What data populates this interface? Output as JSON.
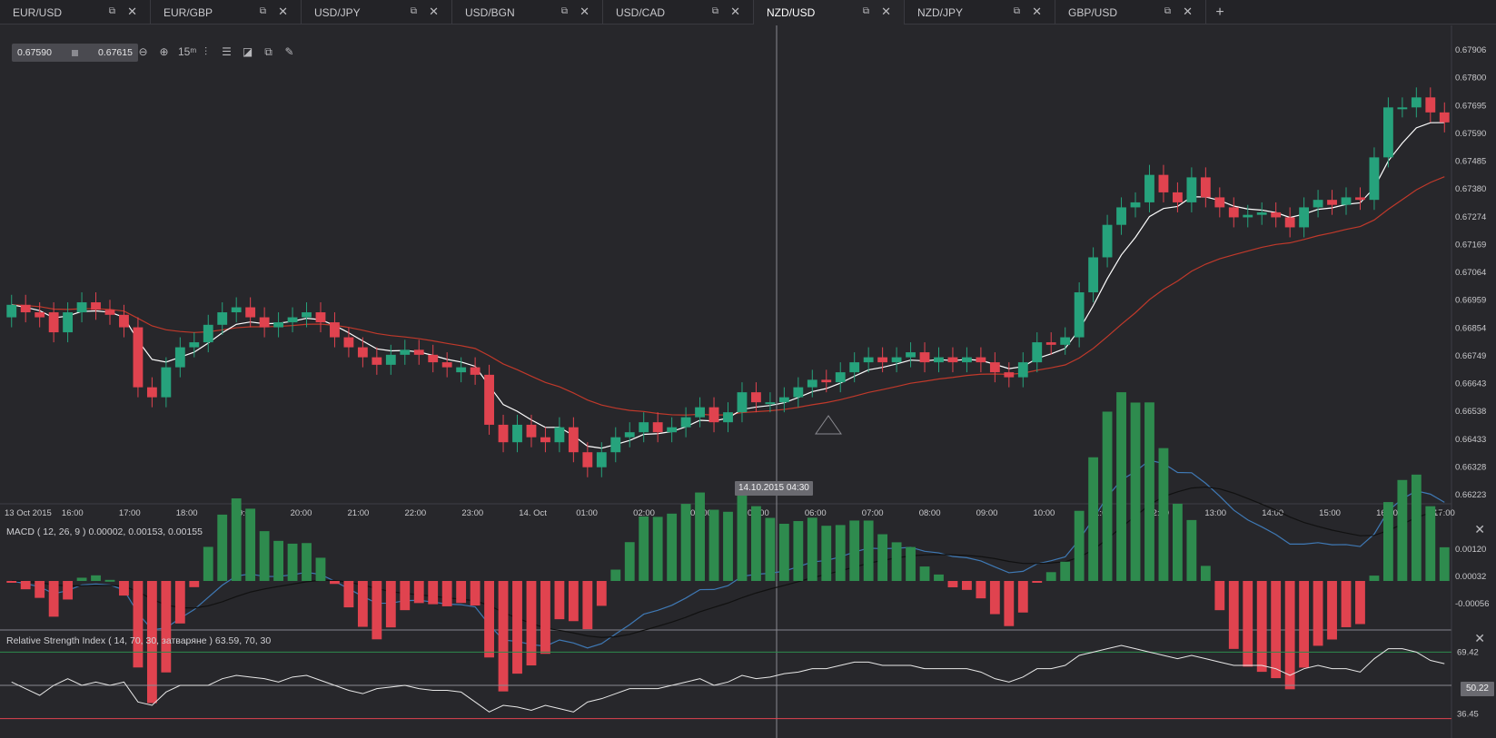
{
  "tabs": [
    {
      "label": "EUR/USD",
      "active": false
    },
    {
      "label": "EUR/GBP",
      "active": false
    },
    {
      "label": "USD/JPY",
      "active": false
    },
    {
      "label": "USD/BGN",
      "active": false
    },
    {
      "label": "USD/CAD",
      "active": false
    },
    {
      "label": "NZD/USD",
      "active": true
    },
    {
      "label": "NZD/JPY",
      "active": false
    },
    {
      "label": "GBP/USD",
      "active": false
    }
  ],
  "icons": {
    "popout": "popout-icon",
    "close": "close-icon",
    "add": "add-tab-icon"
  },
  "quote": {
    "bid": "0.67590",
    "ask": "0.67615"
  },
  "toolbar": [
    {
      "name": "zoom-out-icon",
      "glyph": "⊖"
    },
    {
      "name": "zoom-in-icon",
      "glyph": "⊕"
    },
    {
      "name": "timeframe-15m-icon",
      "glyph": "15ᵐ"
    },
    {
      "name": "indicators-icon",
      "glyph": "⫶"
    },
    {
      "name": "settings-sliders-icon",
      "glyph": "☰"
    },
    {
      "name": "chart-type-icon",
      "glyph": "◪"
    },
    {
      "name": "copy-icon",
      "glyph": "⧉"
    },
    {
      "name": "draw-pen-icon",
      "glyph": "✎"
    }
  ],
  "crosshair_time": "14.10.2015 04:30",
  "macd_title": "MACD ( 12, 26, 9 ) 0.00002, 0.00153, 0.00155",
  "rsi_title": "Relative Strength Index ( 14, 70, 30, затваряне ) 63.59, 70, 30",
  "rsi_current": "50.22",
  "colors": {
    "up": "#26a27c",
    "down": "#e0434f",
    "ema_fast": "#ffffff",
    "ema_slow": "#c0392b",
    "macd": "#3f79b5",
    "signal": "#111111",
    "rsi": "#e8e8e8"
  },
  "chart_data": {
    "type": "candlestick",
    "price_axis": [
      "0.67906",
      "0.67800",
      "0.67695",
      "0.67590",
      "0.67485",
      "0.67380",
      "0.67274",
      "0.67169",
      "0.67064",
      "0.66959",
      "0.66854",
      "0.66749",
      "0.66643",
      "0.66538",
      "0.66433",
      "0.66328",
      "0.66223"
    ],
    "time_axis": [
      "13 Oct 2015",
      "16:00",
      "17:00",
      "18:00",
      "19:00",
      "20:00",
      "21:00",
      "22:00",
      "23:00",
      "14. Oct",
      "01:00",
      "02:00",
      "03:00",
      "05:00",
      "06:00",
      "07:00",
      "08:00",
      "09:00",
      "10:00",
      "11:00",
      "12:00",
      "13:00",
      "14:00",
      "15:00",
      "16:00",
      "17:00"
    ],
    "ylim": [
      0.6617,
      0.6795
    ],
    "closes": [
      0.6693,
      0.669,
      0.6688,
      0.6682,
      0.669,
      0.6694,
      0.6691,
      0.6689,
      0.6684,
      0.666,
      0.6656,
      0.6668,
      0.6676,
      0.6678,
      0.6685,
      0.669,
      0.6692,
      0.6688,
      0.6684,
      0.6686,
      0.6688,
      0.669,
      0.6686,
      0.668,
      0.6676,
      0.6672,
      0.6669,
      0.6673,
      0.6675,
      0.6673,
      0.667,
      0.6668,
      0.6668,
      0.6665,
      0.6645,
      0.6638,
      0.6645,
      0.664,
      0.6638,
      0.6644,
      0.6634,
      0.6628,
      0.6634,
      0.664,
      0.6642,
      0.6646,
      0.6642,
      0.6644,
      0.6648,
      0.6652,
      0.6646,
      0.665,
      0.6658,
      0.6654,
      0.6654,
      0.6656,
      0.666,
      0.6663,
      0.6662,
      0.6666,
      0.667,
      0.6672,
      0.667,
      0.6672,
      0.6674,
      0.667,
      0.6672,
      0.667,
      0.6672,
      0.667,
      0.6666,
      0.6664,
      0.667,
      0.6678,
      0.6677,
      0.668,
      0.6698,
      0.6712,
      0.6725,
      0.6732,
      0.6734,
      0.6745,
      0.6738,
      0.6734,
      0.6744,
      0.6736,
      0.6732,
      0.6728,
      0.6729,
      0.673,
      0.6728,
      0.6724,
      0.6732,
      0.6735,
      0.6733,
      0.6736,
      0.6735,
      0.6752,
      0.6772,
      0.6772,
      0.6776,
      0.677,
      0.6766
    ],
    "opens": [
      0.6688,
      0.6693,
      0.669,
      0.669,
      0.6682,
      0.669,
      0.6694,
      0.6691,
      0.6689,
      0.6684,
      0.666,
      0.6656,
      0.6668,
      0.6676,
      0.6678,
      0.6685,
      0.669,
      0.6692,
      0.6688,
      0.6684,
      0.6686,
      0.6688,
      0.669,
      0.6686,
      0.668,
      0.6676,
      0.6672,
      0.6669,
      0.6673,
      0.6675,
      0.6673,
      0.667,
      0.6666,
      0.6668,
      0.6665,
      0.6645,
      0.6638,
      0.6645,
      0.664,
      0.6638,
      0.6644,
      0.6634,
      0.6628,
      0.6634,
      0.664,
      0.6642,
      0.6646,
      0.6642,
      0.6644,
      0.6648,
      0.6652,
      0.6646,
      0.665,
      0.6658,
      0.6654,
      0.6654,
      0.6656,
      0.666,
      0.6663,
      0.6662,
      0.6666,
      0.667,
      0.6672,
      0.667,
      0.6672,
      0.6674,
      0.667,
      0.6672,
      0.667,
      0.6672,
      0.667,
      0.6666,
      0.6664,
      0.667,
      0.6678,
      0.6677,
      0.668,
      0.6698,
      0.6712,
      0.6725,
      0.6732,
      0.6734,
      0.6745,
      0.6738,
      0.6734,
      0.6744,
      0.6736,
      0.6732,
      0.6728,
      0.6729,
      0.673,
      0.6728,
      0.6724,
      0.6732,
      0.6735,
      0.6733,
      0.6736,
      0.6735,
      0.6752,
      0.6772,
      0.6772,
      0.6776,
      0.677
    ],
    "macd_axis": [
      "0.00120",
      "0.00032",
      "-0.00056"
    ],
    "rsi_axis": [
      "69.42",
      "36.45"
    ],
    "rsi_levels": [
      70,
      30
    ],
    "rsi_values": [
      52,
      48,
      44,
      50,
      54,
      50,
      52,
      50,
      52,
      40,
      38,
      46,
      50,
      50,
      50,
      54,
      56,
      55,
      54,
      52,
      55,
      56,
      53,
      50,
      47,
      45,
      48,
      49,
      50,
      48,
      47,
      47,
      46,
      40,
      34,
      38,
      37,
      35,
      38,
      36,
      34,
      40,
      42,
      45,
      48,
      48,
      48,
      50,
      52,
      54,
      50,
      52,
      56,
      54,
      55,
      57,
      58,
      60,
      60,
      62,
      64,
      64,
      62,
      62,
      62,
      60,
      60,
      60,
      60,
      58,
      54,
      52,
      55,
      60,
      60,
      62,
      68,
      70,
      72,
      74,
      72,
      70,
      68,
      66,
      68,
      66,
      64,
      62,
      62,
      62,
      60,
      56,
      60,
      62,
      60,
      60,
      58,
      66,
      72,
      72,
      70,
      65,
      63
    ]
  }
}
